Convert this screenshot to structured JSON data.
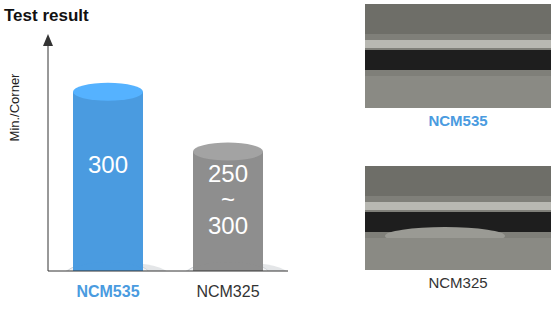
{
  "chart_data": {
    "type": "bar",
    "title": "Test result",
    "y_label": "Min./Corner",
    "categories": [
      "NCM535",
      "NCM325"
    ],
    "values": [
      300,
      250
    ],
    "value_labels": [
      "300",
      "250 ~ 300"
    ],
    "colors": [
      "#4a9be0",
      "#8e8e8e"
    ],
    "ylim": [
      150,
      340
    ],
    "tick_labels": "x",
    "grid": false,
    "data_labels": true
  },
  "photos": [
    {
      "caption": "NCM535"
    },
    {
      "caption": "NCM325"
    }
  ]
}
